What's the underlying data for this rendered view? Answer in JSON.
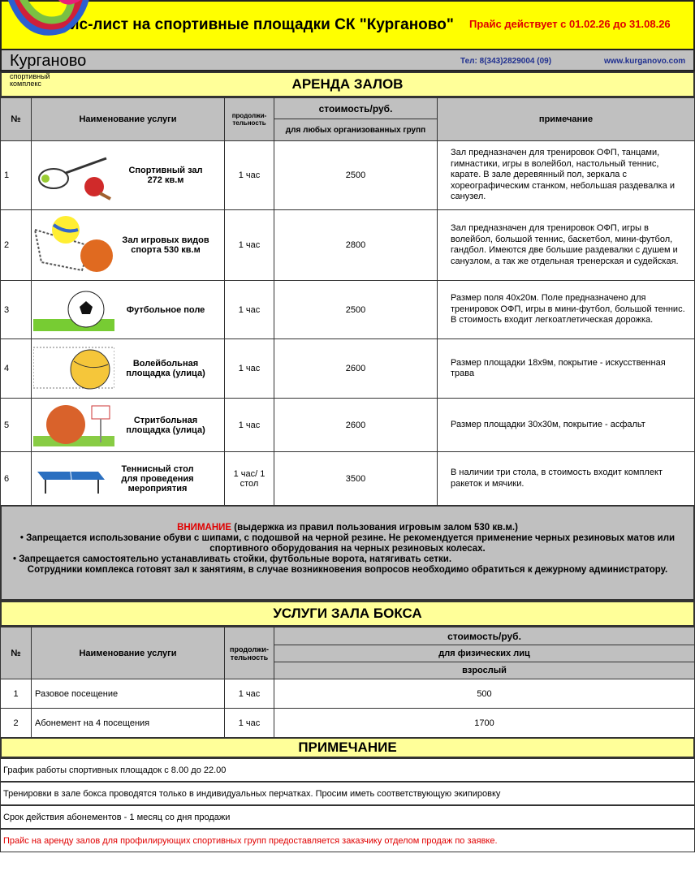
{
  "header": {
    "title": "Прайс-лист на спортивные площадки СК \"Курганово\"",
    "validity": "Прайс действует с 01.02.26 до 31.08.26",
    "brand": "Курганово",
    "brand_sub": "спортивный комплекс",
    "phone": "Тел: 8(343)2829004 (09)",
    "website": "www.kurganovo.com"
  },
  "rent": {
    "title": "АРЕНДА ЗАЛОВ",
    "headers": {
      "num": "№",
      "name": "Наименование услуги",
      "duration": "продолжи-тельность",
      "cost": "стоимость/руб.",
      "cost_sub": "для любых организованных групп",
      "note": "примечание"
    },
    "rows": [
      {
        "num": "1",
        "name": "Спортивный   зал 272 кв.м",
        "icon": "badminton-icon",
        "duration": "1 час",
        "price": "2500",
        "note": "Зал предназначен для тренировок ОФП, танцами, гимнастики, игры в волейбол, настольный теннис, карате. В зале деревянный пол,  зеркала с хореографическим станком, небольшая раздевалка и санузел."
      },
      {
        "num": "2",
        "name": "Зал игровых видов спорта 530 кв.м",
        "icon": "volleyball-net-icon",
        "duration": "1 час",
        "price": "2800",
        "note": "Зал предназначен для тренировок ОФП, игры в волейбол, большой теннис, баскетбол, мини-футбол, гандбол. Имеются две большие раздевалки с душем и санузлом, а так же отдельная тренерская и судейская."
      },
      {
        "num": "3",
        "name": "Футбольное поле",
        "icon": "football-icon",
        "duration": "1 час",
        "price": "2500",
        "note": "Размер поля 40х20м.  Поле предназначено для тренировок ОФП,  игры в мини-футбол, большой теннис. В стоимость входит легкоатлетическая дорожка."
      },
      {
        "num": "4",
        "name": "Волейбольная площадка (улица)",
        "icon": "volleyball-icon",
        "duration": "1 час",
        "price": "2600",
        "note": "Размер площадки 18х9м, покрытие - искусственная трава"
      },
      {
        "num": "5",
        "name": "Стритбольная площадка (улица)",
        "icon": "basketball-icon",
        "duration": "1 час",
        "price": "2600",
        "note": "Размер площадки 30х30м, покрытие - асфальт"
      },
      {
        "num": "6",
        "name": "Теннисный стол для проведения мероприятия",
        "icon": "table-tennis-icon",
        "duration": "1 час/ 1 стол",
        "price": "3500",
        "note": "В наличии три стола, в стоимость входит комплект ракеток и мячики."
      }
    ]
  },
  "attention": {
    "label": "ВНИМАНИЕ",
    "intro": " (выдержка из правил пользования игровым залом 530 кв.м.)",
    "rule1": "• Запрещается использование обуви с шипами, с подошвой на черной резине. Не рекомендуется применение черных резиновых матов или спортивного оборудования на черных резиновых колесах.",
    "rule2": "• Запрещается самостоятельно устанавливать стойки,  футбольные ворота, натягивать сетки.",
    "rule3": "Сотрудники комплекса готовят зал к занятиям, в случае возникновения вопросов необходимо обратиться к дежурному администратору."
  },
  "boxing": {
    "title": "УСЛУГИ ЗАЛА БОКСА",
    "headers": {
      "num": "№",
      "name": "Наименование услуги",
      "duration": "продолжи-тельность",
      "cost": "стоимость/руб.",
      "cost_sub": "для физических лиц",
      "cost_sub2": "взрослый"
    },
    "rows": [
      {
        "num": "1",
        "name": "Разовое посещение",
        "duration": "1 час",
        "price": "500"
      },
      {
        "num": "2",
        "name": "Абонемент на 4 посещения",
        "duration": "1 час",
        "price": "1700"
      }
    ]
  },
  "notes": {
    "title": "ПРИМЕЧАНИЕ",
    "items": [
      "График работы спортивных площадок с 8.00 до 22.00",
      "Тренировки в зале бокса проводятся только в индивидуальных перчатках. Просим иметь соответствующую экипировку",
      "Срок действия абонементов - 1 месяц со дня продажи",
      "Прайс на аренду залов для профилирующих спортивных групп предоставляется заказчику отделом продаж по заявке."
    ]
  },
  "colors": {
    "header_bg": "#ffff00",
    "section_bg": "#ffff99",
    "gray": "#c0c0c0",
    "alert": "#e00000",
    "link": "#1f2f8f"
  }
}
